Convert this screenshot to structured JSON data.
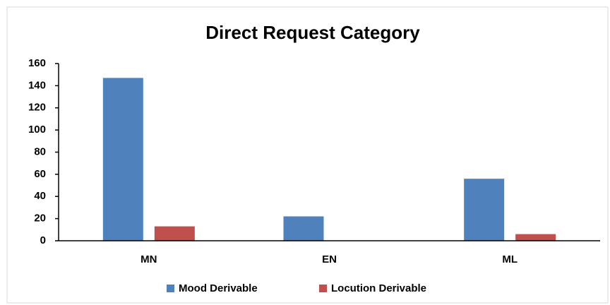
{
  "chart_data": {
    "type": "bar",
    "title": "Direct Request Category",
    "categories": [
      "MN",
      "EN",
      "ML"
    ],
    "series": [
      {
        "name": "Mood Derivable",
        "color": "#4f81bd",
        "values": [
          147,
          22,
          56
        ]
      },
      {
        "name": "Locution Derivable",
        "color": "#c0504d",
        "values": [
          13,
          0,
          6
        ]
      }
    ],
    "ylim": [
      0,
      160
    ],
    "yticks": [
      0,
      20,
      40,
      60,
      80,
      100,
      120,
      140,
      160
    ],
    "grid": false,
    "legend": "bottom"
  }
}
